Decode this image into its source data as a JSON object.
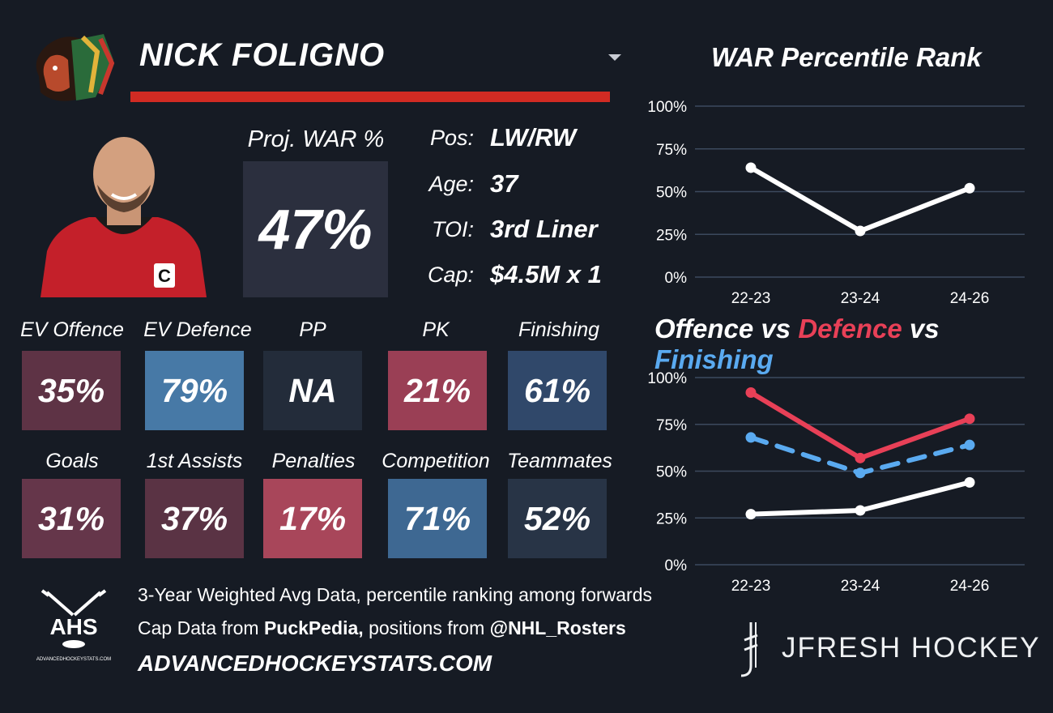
{
  "player": {
    "name": "NICK FOLIGNO"
  },
  "projected": {
    "label": "Proj. WAR %",
    "value": "47%"
  },
  "info": [
    {
      "label": "Pos:",
      "value": "LW/RW"
    },
    {
      "label": "Age:",
      "value": "37"
    },
    {
      "label": "TOI:",
      "value": "3rd Liner"
    },
    {
      "label": "Cap:",
      "value": "$4.5M x 1"
    }
  ],
  "tiles": [
    {
      "label": "EV Offence",
      "value": "35%",
      "color": "#5e3345"
    },
    {
      "label": "EV Defence",
      "value": "79%",
      "color": "#4779a6"
    },
    {
      "label": "PP",
      "value": "NA",
      "color": "#232c3a"
    },
    {
      "label": "PK",
      "value": "21%",
      "color": "#9a3f55"
    },
    {
      "label": "Finishing",
      "value": "61%",
      "color": "#30486a"
    },
    {
      "label": "Goals",
      "value": "31%",
      "color": "#65364a"
    },
    {
      "label": "1st Assists",
      "value": "37%",
      "color": "#5a3344"
    },
    {
      "label": "Penalties",
      "value": "17%",
      "color": "#a8465a"
    },
    {
      "label": "Competition",
      "value": "71%",
      "color": "#3e6892"
    },
    {
      "label": "Teammates",
      "value": "52%",
      "color": "#283446"
    }
  ],
  "footer": {
    "line1": "3-Year Weighted Avg Data, percentile ranking among forwards",
    "line2_prefix": "Cap Data from ",
    "line2_bold1": "PuckPedia,",
    "line2_mid": " positions from ",
    "line2_bold2": "@NHL_Rosters",
    "site": "ADVANCEDHOCKEYSTATS.COM",
    "ahs_logo_text": "AHS",
    "ahs_logo_small": "ADVANCEDHOCKEYSTATS.COM",
    "brand": "JFRESH HOCKEY"
  },
  "chart_data": [
    {
      "type": "line",
      "title": "WAR Percentile Rank",
      "categories": [
        "22-23",
        "23-24",
        "24-26"
      ],
      "yticks": [
        "0%",
        "25%",
        "50%",
        "75%",
        "100%"
      ],
      "ylim": [
        0,
        100
      ],
      "grid": true,
      "series": [
        {
          "values": [
            64,
            27,
            52
          ],
          "color": "#ffffff",
          "dashed": false
        }
      ]
    },
    {
      "type": "line",
      "title_parts": [
        "Offence",
        " vs ",
        "Defence",
        " vs ",
        "Finishing"
      ],
      "categories": [
        "22-23",
        "23-24",
        "24-26"
      ],
      "yticks": [
        "0%",
        "25%",
        "50%",
        "75%",
        "100%"
      ],
      "ylim": [
        0,
        100
      ],
      "grid": true,
      "series": [
        {
          "name": "Offence",
          "values": [
            27,
            29,
            44
          ],
          "color": "#ffffff",
          "dashed": false
        },
        {
          "name": "Defence",
          "values": [
            92,
            57,
            78
          ],
          "color": "#e84057",
          "dashed": false
        },
        {
          "name": "Finishing",
          "values": [
            68,
            49,
            64
          ],
          "color": "#5aaaf0",
          "dashed": true
        }
      ]
    }
  ]
}
